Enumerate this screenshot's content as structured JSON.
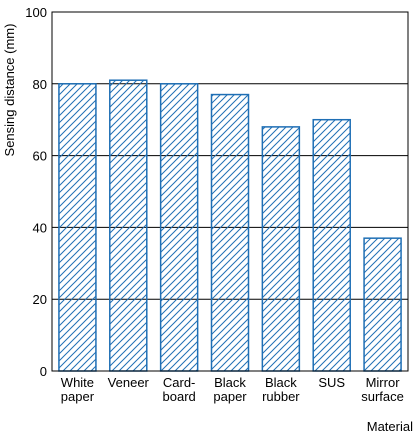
{
  "chart_data": {
    "type": "bar",
    "title": "",
    "ylabel": "Sensing distance (mm)",
    "xlabel": "Material",
    "ylim": [
      0,
      100
    ],
    "yticks": [
      0,
      20,
      40,
      60,
      80,
      100
    ],
    "grid": "horizontal",
    "categories": [
      [
        "White",
        "paper"
      ],
      [
        "Veneer"
      ],
      [
        "Card-",
        "board"
      ],
      [
        "Black",
        "paper"
      ],
      [
        "Black",
        "rubber"
      ],
      [
        "SUS"
      ],
      [
        "Mirror",
        "surface"
      ]
    ],
    "values": [
      80,
      81,
      80,
      77,
      68,
      70,
      37
    ]
  },
  "colors": {
    "bar_edge": "#1f6fb5",
    "hatch": "#1f6fb5",
    "grid": "#000000",
    "frame": "#000000"
  }
}
